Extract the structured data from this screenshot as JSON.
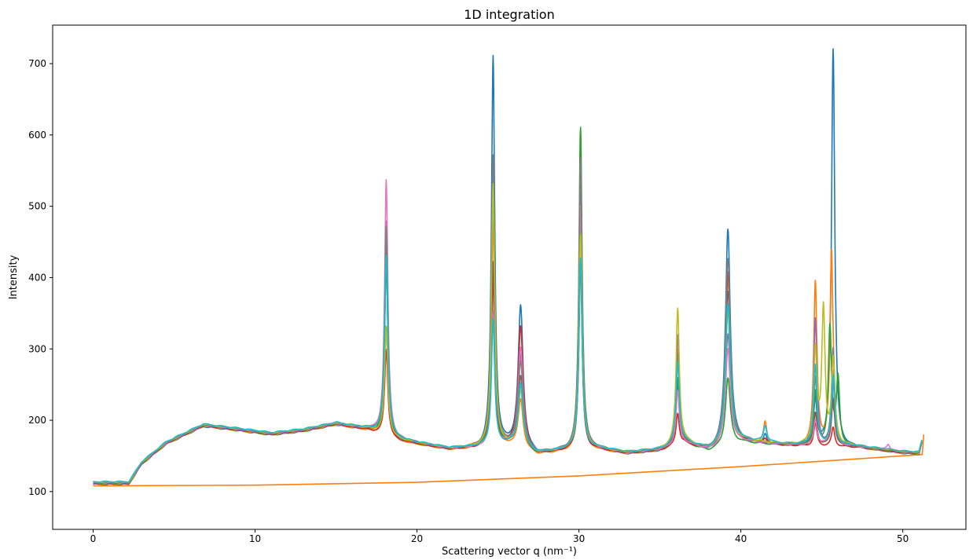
{
  "chart_data": {
    "type": "line",
    "title": "1D integration",
    "xlabel": "Scattering vector q (nm⁻¹)",
    "ylabel": "Intensity",
    "xlim": [
      -2.5,
      53.9
    ],
    "ylim": [
      47,
      754
    ],
    "xticks": [
      0,
      10,
      20,
      30,
      40,
      50
    ],
    "yticks": [
      100,
      200,
      300,
      400,
      500,
      600,
      700
    ],
    "grid": false,
    "legend": "none",
    "peak_half_width": {
      "default": 0.12,
      "broad": 0.18,
      "broad_positions": [
        26.4,
        39.2
      ]
    },
    "shared_profile": [
      [
        0,
        112
      ],
      [
        2.2,
        112
      ],
      [
        3,
        140
      ],
      [
        4.5,
        168
      ],
      [
        6.8,
        193
      ],
      [
        9,
        187
      ],
      [
        11,
        181
      ],
      [
        13,
        186
      ],
      [
        15,
        195
      ],
      [
        17,
        187
      ],
      [
        18.8,
        172
      ],
      [
        22,
        160
      ],
      [
        24,
        162
      ],
      [
        25.8,
        165
      ],
      [
        27.5,
        153
      ],
      [
        29,
        157
      ],
      [
        31,
        160
      ],
      [
        33,
        154
      ],
      [
        35,
        158
      ],
      [
        36.5,
        168
      ],
      [
        38,
        158
      ],
      [
        40,
        170
      ],
      [
        43,
        165
      ],
      [
        47,
        163
      ],
      [
        50,
        155
      ],
      [
        51,
        154
      ],
      [
        51.2,
        172
      ]
    ],
    "series": [
      {
        "color": "#1f77b4",
        "peaks": [
          [
            18.1,
            420
          ],
          [
            24.7,
            711
          ],
          [
            26.4,
            360
          ],
          [
            30.1,
            508
          ],
          [
            36.1,
            250
          ],
          [
            39.2,
            470
          ],
          [
            41.5,
            180
          ],
          [
            44.6,
            230
          ],
          [
            45.7,
            722
          ]
        ]
      },
      {
        "color": "#ff7f0e",
        "peaks": [
          [
            18.1,
            330
          ],
          [
            24.7,
            480
          ],
          [
            26.4,
            230
          ],
          [
            30.1,
            430
          ],
          [
            36.1,
            300
          ],
          [
            39.2,
            400
          ],
          [
            41.5,
            198
          ],
          [
            44.6,
            394
          ],
          [
            45.6,
            438
          ]
        ]
      },
      {
        "color": "#2ca02c",
        "peaks": [
          [
            18.1,
            430
          ],
          [
            24.7,
            530
          ],
          [
            26.4,
            250
          ],
          [
            30.1,
            612
          ],
          [
            36.1,
            260
          ],
          [
            39.2,
            260
          ],
          [
            44.6,
            240
          ],
          [
            45.5,
            330
          ],
          [
            46.0,
            258
          ]
        ]
      },
      {
        "color": "#d62728",
        "peaks": [
          [
            18.1,
            300
          ],
          [
            24.7,
            400
          ],
          [
            26.4,
            332
          ],
          [
            30.1,
            420
          ],
          [
            36.1,
            210
          ],
          [
            39.2,
            408
          ],
          [
            41.5,
            175
          ],
          [
            44.6,
            195
          ],
          [
            45.7,
            190
          ]
        ]
      },
      {
        "color": "#9467bd",
        "peaks": [
          [
            18.1,
            480
          ],
          [
            24.7,
            560
          ],
          [
            26.4,
            290
          ],
          [
            30.1,
            540
          ],
          [
            36.1,
            320
          ],
          [
            39.2,
            320
          ],
          [
            44.6,
            342
          ],
          [
            45.7,
            250
          ]
        ]
      },
      {
        "color": "#8c564b",
        "peaks": [
          [
            18.1,
            460
          ],
          [
            24.7,
            420
          ],
          [
            26.4,
            260
          ],
          [
            30.1,
            490
          ],
          [
            36.1,
            280
          ],
          [
            39.2,
            380
          ],
          [
            44.6,
            210
          ],
          [
            45.7,
            230
          ]
        ]
      },
      {
        "color": "#e377c2",
        "peaks": [
          [
            18.1,
            536
          ],
          [
            24.7,
            350
          ],
          [
            26.4,
            300
          ],
          [
            30.1,
            500
          ],
          [
            36.1,
            240
          ],
          [
            39.2,
            300
          ],
          [
            44.6,
            200
          ],
          [
            45.7,
            270
          ],
          [
            49.1,
            166
          ]
        ]
      },
      {
        "color": "#7f7f7f",
        "peaks": [
          [
            18.1,
            470
          ],
          [
            24.7,
            570
          ],
          [
            26.4,
            280
          ],
          [
            30.1,
            567
          ],
          [
            36.1,
            290
          ],
          [
            39.2,
            426
          ],
          [
            44.6,
            260
          ],
          [
            45.7,
            300
          ]
        ]
      },
      {
        "color": "#bcbd22",
        "peaks": [
          [
            18.1,
            330
          ],
          [
            24.7,
            530
          ],
          [
            26.4,
            240
          ],
          [
            30.1,
            460
          ],
          [
            36.1,
            355
          ],
          [
            39.2,
            350
          ],
          [
            44.6,
            295
          ],
          [
            45.1,
            353
          ],
          [
            45.7,
            280
          ]
        ]
      },
      {
        "color": "#17becf",
        "peaks": [
          [
            18.1,
            430
          ],
          [
            24.7,
            340
          ],
          [
            26.4,
            250
          ],
          [
            30.1,
            425
          ],
          [
            36.1,
            280
          ],
          [
            39.2,
            360
          ],
          [
            41.5,
            190
          ],
          [
            44.6,
            275
          ],
          [
            45.7,
            260
          ]
        ]
      }
    ],
    "background_series": {
      "color": "#ff7f0e",
      "points": [
        [
          0,
          108
        ],
        [
          10,
          109
        ],
        [
          20,
          113
        ],
        [
          30,
          122
        ],
        [
          40,
          135
        ],
        [
          51.2,
          152
        ],
        [
          51.3,
          180
        ]
      ]
    }
  }
}
